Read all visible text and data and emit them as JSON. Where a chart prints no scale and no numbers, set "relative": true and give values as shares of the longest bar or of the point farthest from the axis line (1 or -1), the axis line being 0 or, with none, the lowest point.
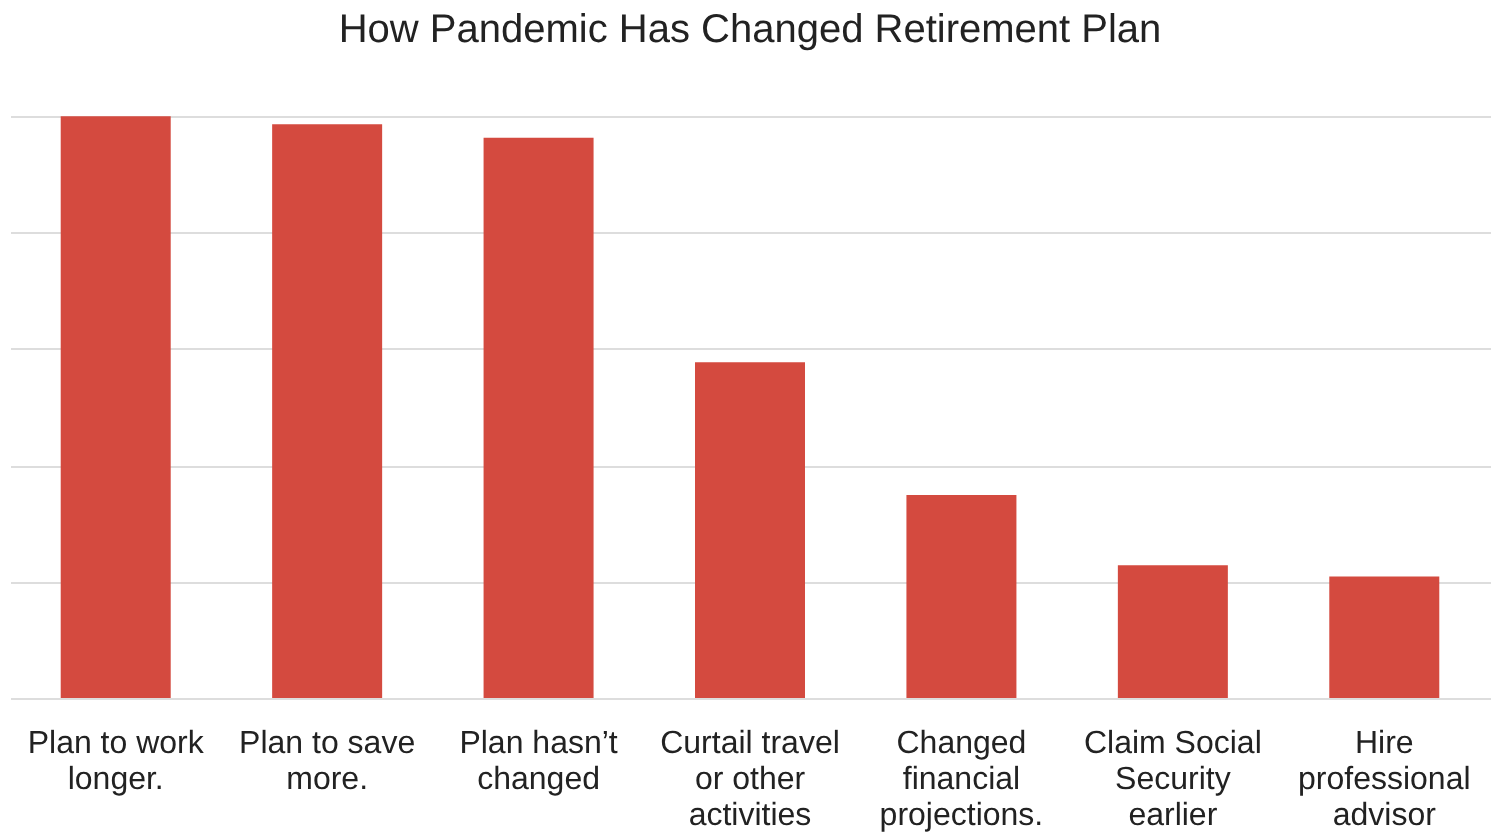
{
  "chart_data": {
    "type": "bar",
    "title": "How Pandemic Has Changed Retirement Plan",
    "relative": true,
    "grid": "y",
    "categories": [
      "Plan to work longer.",
      "Plan to save more.",
      "Plan hasn’t changed",
      "Curtail travel or other activities",
      "Changed financial projections.",
      "Claim Social Security earlier",
      "Hire professional advisor"
    ],
    "series": [
      {
        "color": "#d44a3f",
        "values": [
          1,
          0.986,
          0.963,
          0.577,
          0.349,
          0.228,
          0.209
        ]
      }
    ]
  }
}
